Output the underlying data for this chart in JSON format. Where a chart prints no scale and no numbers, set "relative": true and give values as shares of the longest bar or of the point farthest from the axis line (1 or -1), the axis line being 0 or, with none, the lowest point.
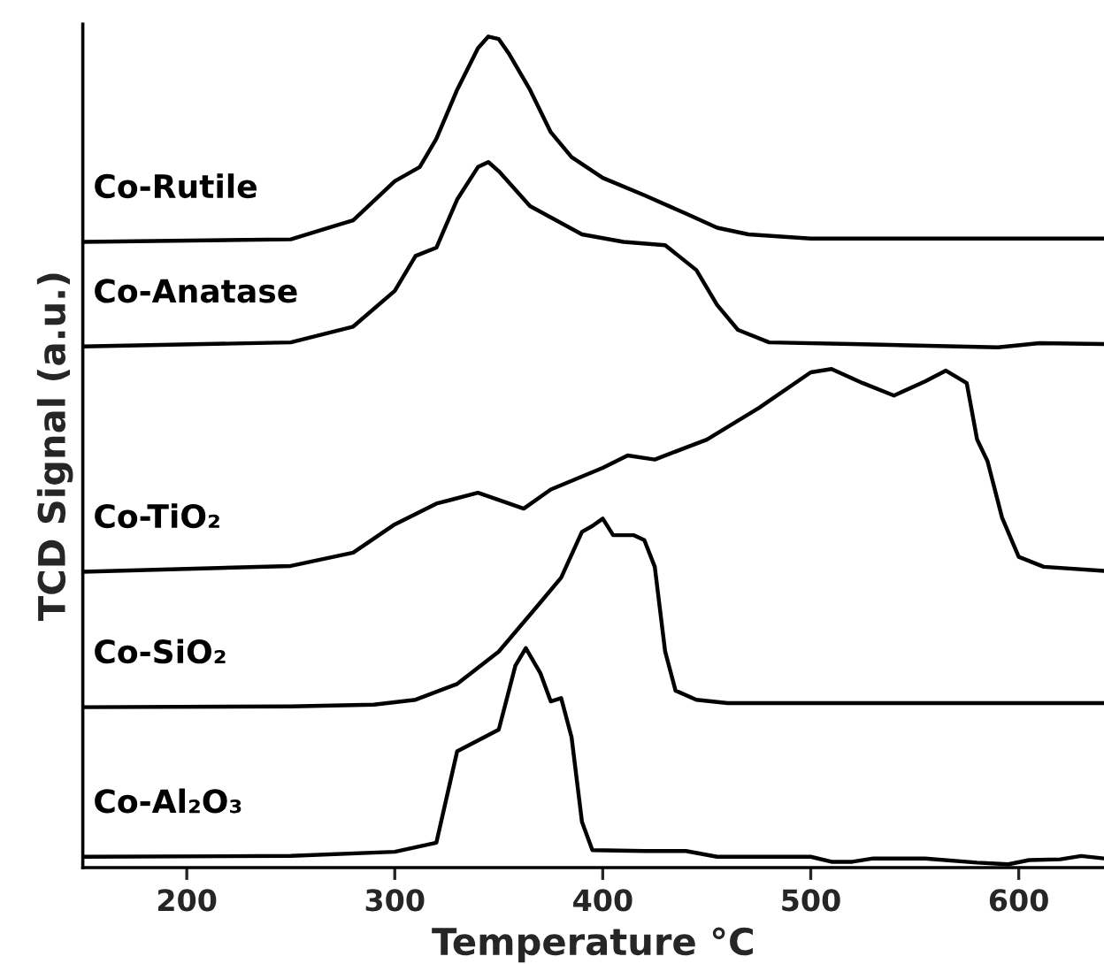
{
  "chart_data": {
    "type": "line",
    "relative": true,
    "xlabel": "Temperature °C",
    "ylabel": "TCD Signal (a.u.)",
    "xlim": [
      150,
      641
    ],
    "xticks": [
      200,
      300,
      400,
      500,
      600
    ],
    "grid": false,
    "legend": false,
    "marker": "none",
    "line_style": "solid",
    "series": [
      {
        "name": "Co-Rutile",
        "color": "#000000",
        "x": [
          150,
          250,
          280,
          300,
          312,
          320,
          330,
          340,
          345,
          350,
          355,
          365,
          375,
          385,
          400,
          420,
          440,
          455,
          470,
          500,
          641
        ],
        "values": [
          0.753,
          0.756,
          0.779,
          0.826,
          0.843,
          0.877,
          0.936,
          0.986,
          1.0,
          0.997,
          0.979,
          0.936,
          0.885,
          0.855,
          0.83,
          0.809,
          0.787,
          0.77,
          0.762,
          0.757,
          0.757
        ]
      },
      {
        "name": "Co-Anatase",
        "color": "#000000",
        "x": [
          150,
          250,
          280,
          300,
          310,
          320,
          330,
          340,
          345,
          350,
          365,
          390,
          410,
          430,
          445,
          455,
          465,
          480,
          520,
          590,
          610,
          641
        ],
        "values": [
          0.627,
          0.632,
          0.651,
          0.694,
          0.736,
          0.746,
          0.804,
          0.843,
          0.849,
          0.838,
          0.796,
          0.762,
          0.753,
          0.749,
          0.719,
          0.677,
          0.647,
          0.632,
          0.63,
          0.626,
          0.631,
          0.63
        ]
      },
      {
        "name": "Co-TiO₂",
        "color": "#000000",
        "x": [
          150,
          250,
          280,
          300,
          320,
          340,
          355,
          362,
          375,
          400,
          412,
          425,
          450,
          475,
          500,
          510,
          525,
          540,
          555,
          565,
          575,
          580,
          585,
          592,
          600,
          612,
          641
        ],
        "values": [
          0.356,
          0.363,
          0.379,
          0.413,
          0.438,
          0.451,
          0.438,
          0.432,
          0.455,
          0.481,
          0.496,
          0.491,
          0.515,
          0.553,
          0.596,
          0.6,
          0.583,
          0.568,
          0.585,
          0.598,
          0.583,
          0.515,
          0.489,
          0.421,
          0.374,
          0.362,
          0.357
        ]
      },
      {
        "name": "Co-SiO₂",
        "color": "#000000",
        "x": [
          150,
          250,
          290,
          310,
          330,
          350,
          370,
          380,
          390,
          395,
          400,
          405,
          410,
          415,
          420,
          425,
          430,
          435,
          445,
          460,
          641
        ],
        "values": [
          0.193,
          0.194,
          0.196,
          0.202,
          0.221,
          0.26,
          0.319,
          0.349,
          0.404,
          0.411,
          0.42,
          0.4,
          0.4,
          0.4,
          0.394,
          0.362,
          0.26,
          0.213,
          0.202,
          0.198,
          0.198
        ]
      },
      {
        "name": "Co-Al₂O₃",
        "color": "#000000",
        "x": [
          150,
          250,
          300,
          320,
          330,
          340,
          350,
          358,
          363,
          370,
          375,
          380,
          385,
          390,
          395,
          420,
          440,
          455,
          500,
          510,
          520,
          530,
          555,
          580,
          595,
          605,
          620,
          630,
          641
        ],
        "values": [
          0.013,
          0.014,
          0.019,
          0.03,
          0.14,
          0.153,
          0.166,
          0.243,
          0.264,
          0.234,
          0.2,
          0.204,
          0.157,
          0.055,
          0.021,
          0.02,
          0.02,
          0.013,
          0.013,
          0.007,
          0.007,
          0.011,
          0.011,
          0.006,
          0.004,
          0.009,
          0.01,
          0.014,
          0.011
        ]
      }
    ]
  }
}
